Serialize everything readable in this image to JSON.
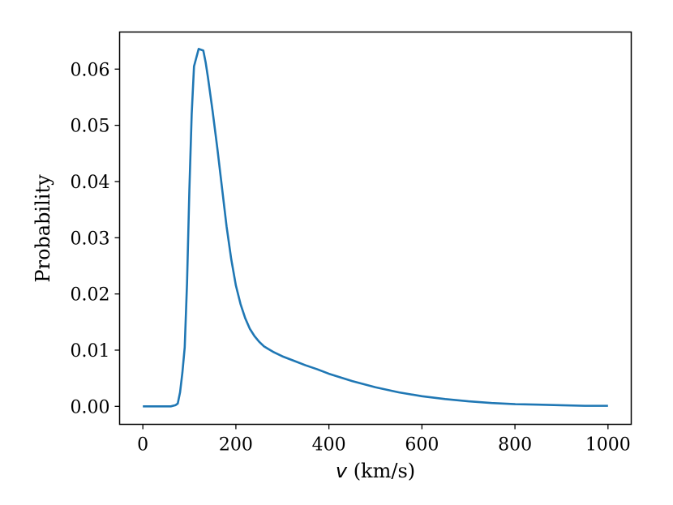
{
  "chart_data": {
    "type": "line",
    "title": "",
    "xlabel_var": "v",
    "xlabel_unit": " (km/s)",
    "ylabel": "Probability",
    "xlim": [
      -50,
      1050
    ],
    "ylim": [
      -0.0032,
      0.0666
    ],
    "xticks": [
      0,
      200,
      400,
      600,
      800,
      1000
    ],
    "yticks": [
      0.0,
      0.01,
      0.02,
      0.03,
      0.04,
      0.05,
      0.06
    ],
    "xtick_labels": [
      "0",
      "200",
      "400",
      "600",
      "800",
      "1000"
    ],
    "ytick_labels": [
      "0.00",
      "0.01",
      "0.02",
      "0.03",
      "0.04",
      "0.05",
      "0.06"
    ],
    "grid": false,
    "line_color": "#1f77b4",
    "series": [
      {
        "x": [
          0,
          10,
          20,
          30,
          40,
          50,
          60,
          70,
          75,
          80,
          85,
          90,
          95,
          100,
          105,
          110,
          120,
          130,
          135,
          140,
          145,
          150,
          160,
          170,
          180,
          190,
          200,
          210,
          220,
          230,
          240,
          250,
          260,
          270,
          280,
          290,
          300,
          325,
          350,
          375,
          400,
          450,
          500,
          550,
          600,
          650,
          700,
          750,
          800,
          850,
          900,
          950,
          1000
        ],
        "y": [
          0,
          0,
          0,
          0,
          0,
          0,
          0,
          0.0002,
          0.0005,
          0.0025,
          0.006,
          0.0105,
          0.022,
          0.0385,
          0.052,
          0.0605,
          0.0636,
          0.0633,
          0.0612,
          0.0585,
          0.0555,
          0.0525,
          0.046,
          0.039,
          0.032,
          0.0262,
          0.0215,
          0.0182,
          0.0157,
          0.0138,
          0.0125,
          0.0115,
          0.0107,
          0.0102,
          0.0097,
          0.0093,
          0.0089,
          0.0081,
          0.0073,
          0.0066,
          0.0058,
          0.0045,
          0.0034,
          0.0025,
          0.0018,
          0.0013,
          0.0009,
          0.0006,
          0.0004,
          0.0003,
          0.0002,
          0.0001,
          0.0001
        ]
      }
    ]
  }
}
